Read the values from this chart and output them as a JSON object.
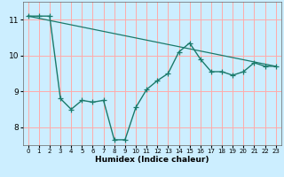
{
  "title": "",
  "xlabel": "Humidex (Indice chaleur)",
  "ylabel": "",
  "background_color": "#cceeff",
  "grid_color": "#ffaaaa",
  "line_color": "#1a7a6a",
  "xlim": [
    -0.5,
    23.5
  ],
  "ylim": [
    7.5,
    11.5
  ],
  "yticks": [
    8,
    9,
    10,
    11
  ],
  "xticks": [
    0,
    1,
    2,
    3,
    4,
    5,
    6,
    7,
    8,
    9,
    10,
    11,
    12,
    13,
    14,
    15,
    16,
    17,
    18,
    19,
    20,
    21,
    22,
    23
  ],
  "series1_x": [
    0,
    1,
    2,
    3,
    4,
    5,
    6,
    7,
    8,
    9,
    10,
    11,
    12,
    13,
    14,
    15,
    16,
    17,
    18,
    19,
    20,
    21,
    22,
    23
  ],
  "series1_y": [
    11.1,
    11.1,
    11.1,
    8.8,
    8.5,
    8.75,
    8.7,
    8.75,
    7.65,
    7.65,
    8.55,
    9.05,
    9.3,
    9.5,
    10.1,
    10.35,
    9.9,
    9.55,
    9.55,
    9.45,
    9.55,
    9.8,
    9.7,
    9.7
  ],
  "series2_x": [
    0,
    23
  ],
  "series2_y": [
    11.1,
    9.7
  ],
  "marker_size": 4,
  "linewidth1": 1.0,
  "linewidth2": 0.9
}
